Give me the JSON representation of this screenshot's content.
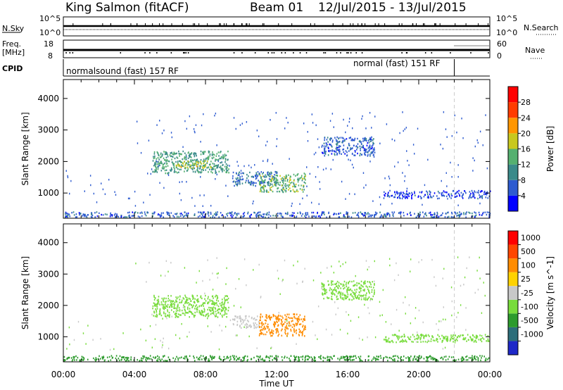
{
  "header": {
    "station": "King Salmon (fitACF)",
    "beam": "Beam 01",
    "dates": "12/Jul/2015 - 13/Jul/2015"
  },
  "side_labels": {
    "nsky": "N.Sky",
    "freq": "Freq.",
    "mhz": "[MHz]",
    "cpid": "CPID",
    "nsearch": "N.Search",
    "nave": "Nave"
  },
  "noise_axis": {
    "left_top": "10^5",
    "left_bottom": "10^0",
    "right_top": "10^5",
    "right_bottom": "10^0"
  },
  "freq_axis": {
    "left_top": "18",
    "left_bottom": "8",
    "right_top": "60",
    "right_bottom": "0"
  },
  "cpid": {
    "segment1": "normalsound (fast) 157 RF",
    "segment2": "normal (fast) 151 RF",
    "switch_hour": 22.0
  },
  "chart_data": [
    {
      "type": "heatmap",
      "title": "Power",
      "xlabel": "",
      "ylabel": "Slant Range [km]",
      "xlim": [
        0,
        24
      ],
      "ylim": [
        200,
        4600
      ],
      "y_ticks": [
        "1000",
        "2000",
        "3000",
        "4000"
      ],
      "colorbar": {
        "label": "Power [dB]",
        "ticks": [
          "4",
          "8",
          "12",
          "16",
          "20",
          "24",
          "28"
        ],
        "range": [
          0,
          30
        ]
      },
      "colors": [
        "#0000ff",
        "#2d5bd0",
        "#3a8a8a",
        "#55b070",
        "#c8c81e",
        "#ff9600",
        "#ff3c00",
        "#ff0000"
      ],
      "regions": [
        {
          "x0": 5.0,
          "x1": 9.3,
          "y0": 1650,
          "y1": 2350,
          "value": 11
        },
        {
          "x0": 6.3,
          "x1": 8.3,
          "y0": 1800,
          "y1": 2050,
          "value": 16
        },
        {
          "x0": 9.5,
          "x1": 12.0,
          "y0": 1250,
          "y1": 1700,
          "value": 7
        },
        {
          "x0": 11.0,
          "x1": 13.6,
          "y0": 1050,
          "y1": 1650,
          "value": 13
        },
        {
          "x0": 14.5,
          "x1": 17.5,
          "y0": 2200,
          "y1": 2800,
          "value": 6
        },
        {
          "x0": 18.0,
          "x1": 24.0,
          "y0": 850,
          "y1": 1100,
          "value": 5
        },
        {
          "x0": 0.0,
          "x1": 24.0,
          "y0": 250,
          "y1": 420,
          "value": 6
        }
      ]
    },
    {
      "type": "heatmap",
      "title": "Velocity",
      "xlabel": "Time UT",
      "ylabel": "Slant Range [km]",
      "xlim": [
        0,
        24
      ],
      "ylim": [
        200,
        4600
      ],
      "x_ticks": [
        "00:00",
        "04:00",
        "08:00",
        "12:00",
        "16:00",
        "20:00",
        "00:00"
      ],
      "y_ticks": [
        "1000",
        "2000",
        "3000",
        "4000"
      ],
      "colorbar": {
        "label": "Velocity [m s^-1]",
        "ticks": [
          "1000",
          "500",
          "100",
          "25",
          "-25",
          "-100",
          "-500",
          "-1000"
        ]
      },
      "colors": [
        "#1e28c8",
        "#2d6e7a",
        "#2d9b2d",
        "#78dc3c",
        "#c8c8c8",
        "#ffd200",
        "#ff8c00",
        "#ff4600",
        "#ff0000"
      ],
      "regions": [
        {
          "x0": 5.0,
          "x1": 9.3,
          "y0": 1650,
          "y1": 2350,
          "value": 0
        },
        {
          "x0": 9.5,
          "x1": 11.0,
          "y0": 1300,
          "y1": 1700,
          "value": -60
        },
        {
          "x0": 11.0,
          "x1": 13.6,
          "y0": 1050,
          "y1": 1750,
          "value": -300
        },
        {
          "x0": 14.5,
          "x1": 17.5,
          "y0": 2200,
          "y1": 2800,
          "value": 10
        },
        {
          "x0": 18.0,
          "x1": 24.0,
          "y0": 850,
          "y1": 1100,
          "value": 0
        },
        {
          "x0": 0.0,
          "x1": 24.0,
          "y0": 250,
          "y1": 420,
          "value": 60
        }
      ]
    }
  ]
}
